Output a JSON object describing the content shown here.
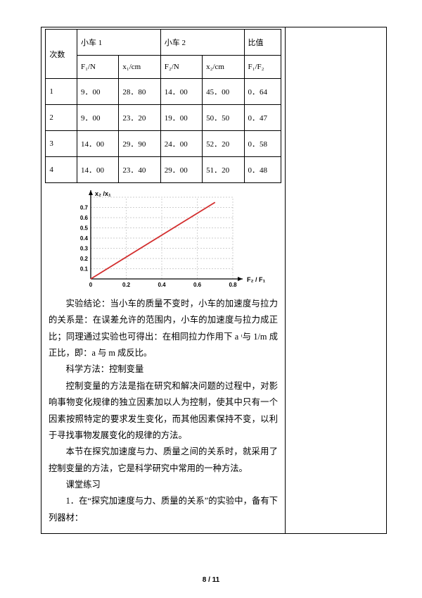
{
  "table": {
    "header_row1": [
      "次数",
      "小车 1",
      "小车 2",
      "比值"
    ],
    "header_row2": [
      "",
      "F₁/N",
      "x₁/cm",
      "F₂/N",
      "x₂/cm",
      "F₁/F₂"
    ],
    "rows": [
      [
        "1",
        "9．00",
        "28．80",
        "14．00",
        "45．00",
        "0．64"
      ],
      [
        "2",
        "9．00",
        "23．20",
        "19．00",
        "50．50",
        "0．47"
      ],
      [
        "3",
        "14．00",
        "29．90",
        "24．00",
        "52．20",
        "0．58"
      ],
      [
        "4",
        "14．00",
        "23．40",
        "29．00",
        "51．20",
        "0．48"
      ]
    ]
  },
  "chart": {
    "type": "line",
    "x_label": "F₂ / F₁",
    "y_label": "x₂ /x₁",
    "xlim": [
      0,
      0.8
    ],
    "ylim": [
      0,
      0.8
    ],
    "x_ticks": [
      0,
      0.2,
      0.4,
      0.6,
      0.8
    ],
    "y_ticks": [
      "0.1",
      "0.2",
      "0.3",
      "0.4",
      "0.5",
      "0.6",
      "0.7"
    ],
    "line_color": "#d32f2f",
    "axis_color": "#000000",
    "grid_color": "#bfbfbf",
    "tick_font_size": 8,
    "label_font_size": 9,
    "points": [
      [
        0,
        0
      ],
      [
        0.7,
        0.75
      ]
    ]
  },
  "paragraphs": {
    "p1": "实验结论：当小车的质量不变时，小车的加速度与拉力的关系是：在误差允许的范围内，小车的加速度与拉力成正比；同理通过实验也可得出：在相同拉力作用下 a ᶦ与 1/m 成正比，即：a 与 m 成反比。",
    "p2": "科学方法：控制变量",
    "p3": "控制变量的方法是指在研究和解决问题的过程中，对影响事物变化规律的独立因素加以人为控制，使其中只有一个因素按照特定的要求发生变化，而其他因素保持不变，以利于寻找事物发展变化的规律的方法。",
    "p4": "本节在探究加速度与力、质量之间的关系时，就采用了控制变量的方法，它是科学研究中常用的一种方法。",
    "p5": "课堂练习",
    "p6": "1．在“探究加速度与力、质量的关系”的实验中，备有下列器材："
  },
  "page_number": "8 / 11"
}
